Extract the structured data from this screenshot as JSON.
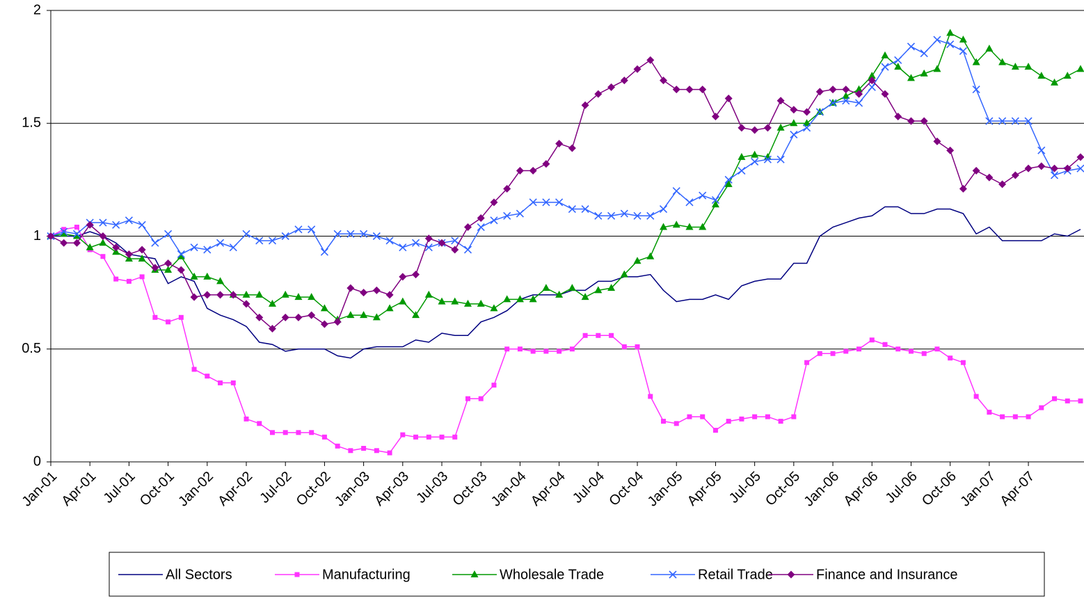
{
  "chart_data": {
    "type": "line",
    "categories": [
      "Jan-01",
      null,
      null,
      "Apr-01",
      null,
      null,
      "Jul-01",
      null,
      null,
      "Oct-01",
      null,
      null,
      "Jan-02",
      null,
      null,
      "Apr-02",
      null,
      null,
      "Jul-02",
      null,
      null,
      "Oct-02",
      null,
      null,
      "Jan-03",
      null,
      null,
      "Apr-03",
      null,
      null,
      "Jul-03",
      null,
      null,
      "Oct-03",
      null,
      null,
      "Jan-04",
      null,
      null,
      "Apr-04",
      null,
      null,
      "Jul-04",
      null,
      null,
      "Oct-04",
      null,
      null,
      "Jan-05",
      null,
      null,
      "Apr-05",
      null,
      null,
      "Jul-05",
      null,
      null,
      "Oct-05",
      null,
      null,
      "Jan-06",
      null,
      null,
      "Apr-06",
      null,
      null,
      "Jul-06",
      null,
      null,
      "Oct-06",
      null,
      null,
      "Jan-07",
      null,
      null,
      "Apr-07",
      null,
      null,
      null,
      null
    ],
    "series": [
      {
        "name": "All Sectors",
        "color": "#000080",
        "marker": "none",
        "values": [
          1.0,
          1.0,
          1.0,
          1.02,
          1.0,
          0.97,
          0.92,
          0.91,
          0.9,
          0.79,
          0.82,
          0.8,
          0.68,
          0.65,
          0.63,
          0.6,
          0.53,
          0.52,
          0.49,
          0.5,
          0.5,
          0.5,
          0.47,
          0.46,
          0.5,
          0.51,
          0.51,
          0.51,
          0.54,
          0.53,
          0.57,
          0.56,
          0.56,
          0.62,
          0.64,
          0.67,
          0.72,
          0.74,
          0.74,
          0.74,
          0.76,
          0.76,
          0.8,
          0.8,
          0.82,
          0.82,
          0.83,
          0.76,
          0.71,
          0.72,
          0.72,
          0.74,
          0.72,
          0.78,
          0.8,
          0.81,
          0.81,
          0.88,
          0.88,
          1.0,
          1.04,
          1.06,
          1.08,
          1.09,
          1.13,
          1.13,
          1.1,
          1.1,
          1.12,
          1.12,
          1.1,
          1.01,
          1.04,
          0.98,
          0.98,
          0.98,
          0.98,
          1.01,
          1.0,
          1.03
        ]
      },
      {
        "name": "Manufacturing",
        "color": "#ff33ff",
        "marker": "square",
        "values": [
          1.0,
          1.03,
          1.04,
          0.94,
          0.91,
          0.81,
          0.8,
          0.82,
          0.64,
          0.62,
          0.64,
          0.41,
          0.38,
          0.35,
          0.35,
          0.19,
          0.17,
          0.13,
          0.13,
          0.13,
          0.13,
          0.11,
          0.07,
          0.05,
          0.06,
          0.05,
          0.04,
          0.12,
          0.11,
          0.11,
          0.11,
          0.11,
          0.28,
          0.28,
          0.34,
          0.5,
          0.5,
          0.49,
          0.49,
          0.49,
          0.5,
          0.56,
          0.56,
          0.56,
          0.51,
          0.51,
          0.29,
          0.18,
          0.17,
          0.2,
          0.2,
          0.14,
          0.18,
          0.19,
          0.2,
          0.2,
          0.18,
          0.2,
          0.44,
          0.48,
          0.48,
          0.49,
          0.5,
          0.54,
          0.52,
          0.5,
          0.49,
          0.48,
          0.5,
          0.46,
          0.44,
          0.29,
          0.22,
          0.2,
          0.2,
          0.2,
          0.24,
          0.28,
          0.27,
          0.27
        ]
      },
      {
        "name": "Wholesale Trade",
        "color": "#009900",
        "marker": "triangle",
        "values": [
          1.0,
          1.01,
          1.0,
          0.95,
          0.97,
          0.93,
          0.9,
          0.9,
          0.85,
          0.85,
          0.91,
          0.82,
          0.82,
          0.8,
          0.74,
          0.74,
          0.74,
          0.7,
          0.74,
          0.73,
          0.73,
          0.68,
          0.63,
          0.65,
          0.65,
          0.64,
          0.68,
          0.71,
          0.65,
          0.74,
          0.71,
          0.71,
          0.7,
          0.7,
          0.68,
          0.72,
          0.72,
          0.72,
          0.77,
          0.74,
          0.77,
          0.73,
          0.76,
          0.77,
          0.83,
          0.89,
          0.91,
          1.04,
          1.05,
          1.04,
          1.04,
          1.14,
          1.23,
          1.35,
          1.36,
          1.35,
          1.48,
          1.5,
          1.5,
          1.55,
          1.59,
          1.62,
          1.65,
          1.71,
          1.8,
          1.75,
          1.7,
          1.72,
          1.74,
          1.9,
          1.87,
          1.77,
          1.83,
          1.77,
          1.75,
          1.75,
          1.71,
          1.68,
          1.71,
          1.74
        ]
      },
      {
        "name": "Retail Trade",
        "color": "#3366ff",
        "marker": "x",
        "values": [
          1.0,
          1.02,
          1.01,
          1.06,
          1.06,
          1.05,
          1.07,
          1.05,
          0.97,
          1.01,
          0.92,
          0.95,
          0.94,
          0.97,
          0.95,
          1.01,
          0.98,
          0.98,
          1.0,
          1.03,
          1.03,
          0.93,
          1.01,
          1.01,
          1.01,
          1.0,
          0.98,
          0.95,
          0.97,
          0.95,
          0.97,
          0.98,
          0.94,
          1.04,
          1.07,
          1.09,
          1.1,
          1.15,
          1.15,
          1.15,
          1.12,
          1.12,
          1.09,
          1.09,
          1.1,
          1.09,
          1.09,
          1.12,
          1.2,
          1.15,
          1.18,
          1.16,
          1.25,
          1.29,
          1.33,
          1.34,
          1.34,
          1.45,
          1.48,
          1.55,
          1.59,
          1.6,
          1.59,
          1.66,
          1.75,
          1.78,
          1.84,
          1.81,
          1.87,
          1.85,
          1.82,
          1.65,
          1.51,
          1.51,
          1.51,
          1.51,
          1.38,
          1.27,
          1.29,
          1.3
        ]
      },
      {
        "name": "Finance and Insurance",
        "color": "#800080",
        "marker": "diamond",
        "values": [
          1.0,
          0.97,
          0.97,
          1.05,
          1.0,
          0.95,
          0.92,
          0.94,
          0.86,
          0.88,
          0.85,
          0.73,
          0.74,
          0.74,
          0.74,
          0.7,
          0.64,
          0.59,
          0.64,
          0.64,
          0.65,
          0.61,
          0.62,
          0.77,
          0.75,
          0.76,
          0.74,
          0.82,
          0.83,
          0.99,
          0.97,
          0.94,
          1.04,
          1.08,
          1.15,
          1.21,
          1.29,
          1.29,
          1.32,
          1.41,
          1.39,
          1.58,
          1.63,
          1.66,
          1.69,
          1.74,
          1.78,
          1.69,
          1.65,
          1.65,
          1.65,
          1.53,
          1.61,
          1.48,
          1.47,
          1.48,
          1.6,
          1.56,
          1.55,
          1.64,
          1.65,
          1.65,
          1.63,
          1.69,
          1.63,
          1.53,
          1.51,
          1.51,
          1.42,
          1.38,
          1.21,
          1.29,
          1.26,
          1.23,
          1.27,
          1.3,
          1.31,
          1.3,
          1.3,
          1.35
        ]
      }
    ],
    "ylim": [
      0,
      2
    ],
    "yticks": [
      0,
      0.5,
      1,
      1.5,
      2
    ],
    "grid": true,
    "legend": "bottom"
  }
}
